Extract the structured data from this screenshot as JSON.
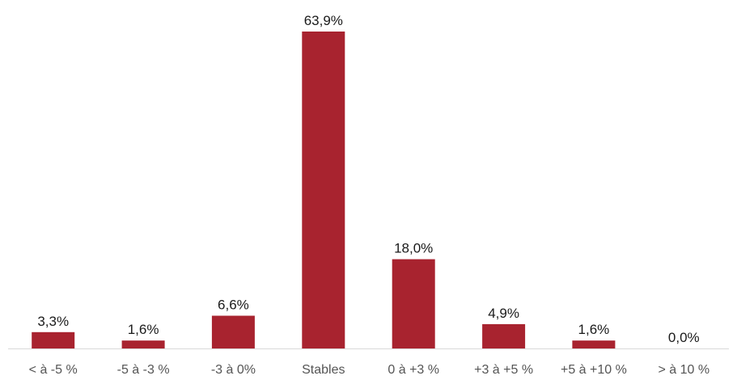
{
  "chart_data": {
    "type": "bar",
    "categories": [
      "< à -5 %",
      "-5 à -3 %",
      "-3 à 0%",
      "Stables",
      "0 à +3 %",
      "+3 à +5 %",
      "+5 à +10 %",
      "> à 10 %"
    ],
    "values": [
      3.3,
      1.6,
      6.6,
      63.9,
      18.0,
      4.9,
      1.6,
      0.0
    ],
    "data_labels": [
      "3,3%",
      "1,6%",
      "6,6%",
      "63,9%",
      "18,0%",
      "4,9%",
      "1,6%",
      "0,0%"
    ],
    "title": "",
    "xlabel": "",
    "ylabel": "",
    "ylim": [
      0,
      63.9
    ],
    "grid": false,
    "legend": "none",
    "bar_color": "#a8232f",
    "baseline_color": "#d9d9d9"
  }
}
